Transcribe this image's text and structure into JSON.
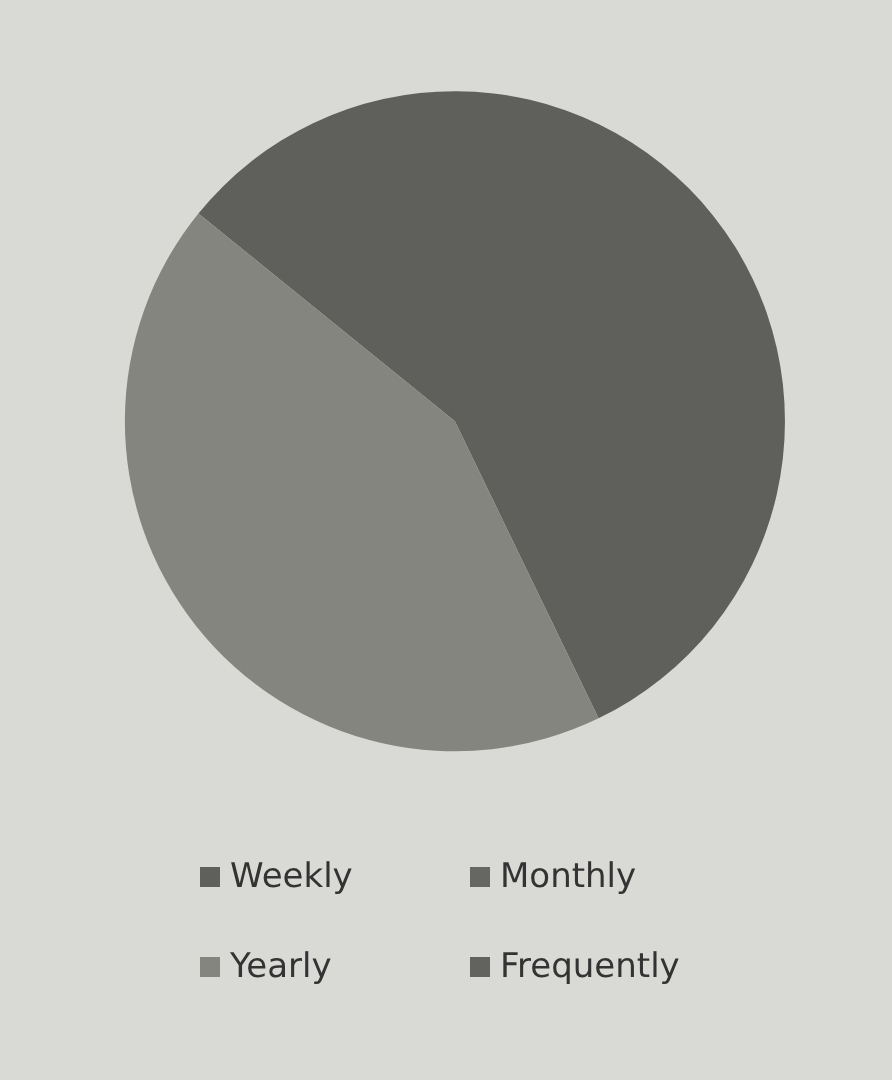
{
  "chart_data": {
    "type": "pie",
    "categories": [
      "Weekly",
      "Monthly",
      "Yearly",
      "Frequently"
    ],
    "values": [
      57,
      0,
      43,
      0
    ],
    "colors": [
      "#5f5f5c",
      "#666663",
      "#858580",
      "#626260"
    ],
    "legend": "bottom"
  }
}
